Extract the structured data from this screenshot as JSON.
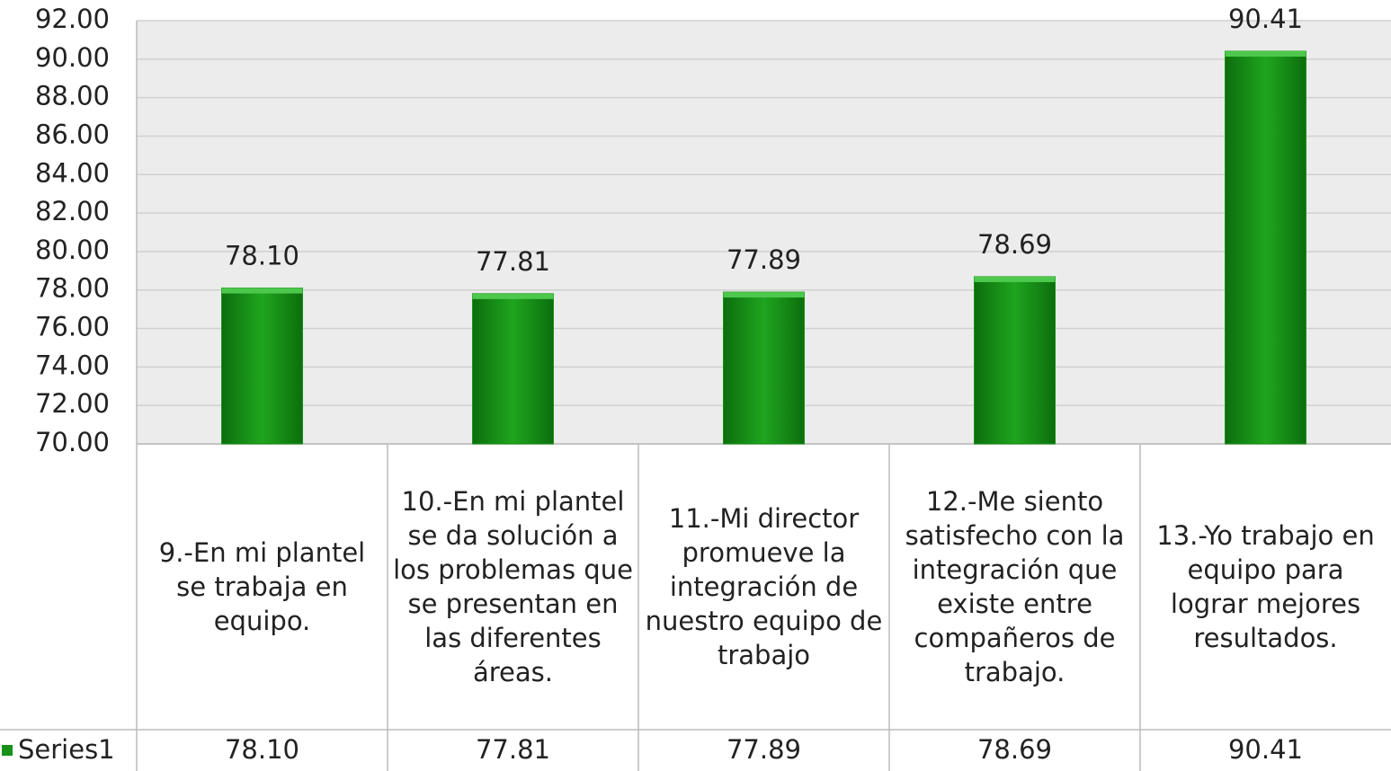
{
  "chart_data": {
    "type": "bar",
    "categories": [
      "9.-En mi plantel se trabaja en equipo.",
      "10.-En mi plantel se da solución a los problemas que se presentan en las diferentes áreas.",
      "11.-Mi director promueve la integración de nuestro equipo de trabajo",
      "12.-Me siento satisfecho con la integración que existe entre compañeros de trabajo.",
      "13.-Yo trabajo en equipo para lograr mejores resultados."
    ],
    "series": [
      {
        "name": "Series1",
        "color": "#179117",
        "values": [
          78.1,
          77.81,
          77.89,
          78.69,
          90.41
        ],
        "value_labels": [
          "78.10",
          "77.81",
          "77.89",
          "78.69",
          "90.41"
        ]
      }
    ],
    "ylim": [
      70,
      92
    ],
    "yticks": [
      {
        "value": 70,
        "label": "70.00"
      },
      {
        "value": 72,
        "label": "72.00"
      },
      {
        "value": 74,
        "label": "74.00"
      },
      {
        "value": 76,
        "label": "76.00"
      },
      {
        "value": 78,
        "label": "78.00"
      },
      {
        "value": 80,
        "label": "80.00"
      },
      {
        "value": 82,
        "label": "82.00"
      },
      {
        "value": 84,
        "label": "84.00"
      },
      {
        "value": 86,
        "label": "86.00"
      },
      {
        "value": 88,
        "label": "88.00"
      },
      {
        "value": 90,
        "label": "90.00"
      },
      {
        "value": 92,
        "label": "92.00"
      }
    ],
    "grid": true
  }
}
